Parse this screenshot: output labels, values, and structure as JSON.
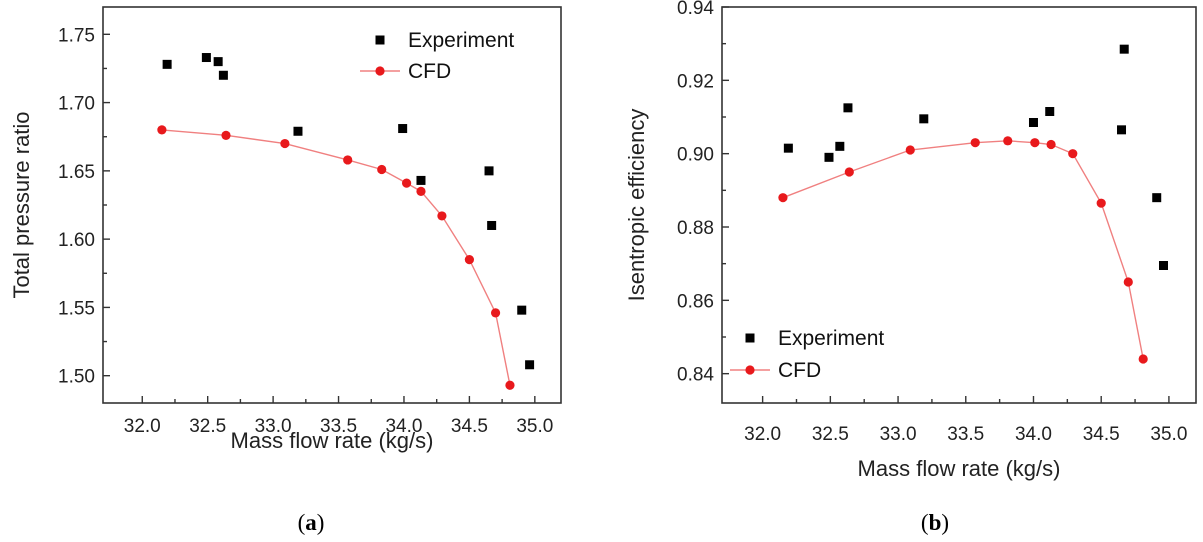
{
  "chart_data": [
    {
      "type": "scatter",
      "panel_label": "a",
      "xlabel": "Mass flow rate (kg/s)",
      "ylabel": "Total pressure ratio",
      "xlim": [
        31.7,
        35.2
      ],
      "ylim": [
        1.48,
        1.77
      ],
      "xticks": [
        "32.0",
        "32.5",
        "33.0",
        "33.5",
        "34.0",
        "34.5",
        "35.0"
      ],
      "yticks": [
        "1.50",
        "1.55",
        "1.60",
        "1.65",
        "1.70",
        "1.75"
      ],
      "legend_position": "top-right",
      "series": [
        {
          "name": "Experiment",
          "marker": "square",
          "color": "#000000",
          "x": [
            32.19,
            32.49,
            32.58,
            32.62,
            33.19,
            33.99,
            34.13,
            34.65,
            34.67,
            34.9,
            34.96
          ],
          "y": [
            1.728,
            1.733,
            1.73,
            1.72,
            1.679,
            1.681,
            1.643,
            1.65,
            1.61,
            1.548,
            1.508
          ]
        },
        {
          "name": "CFD",
          "marker": "circle-line",
          "color": "#e8191c",
          "line_color": "#f08080",
          "x": [
            32.15,
            32.64,
            33.09,
            33.57,
            33.83,
            34.02,
            34.13,
            34.29,
            34.5,
            34.7,
            34.81
          ],
          "y": [
            1.68,
            1.676,
            1.67,
            1.658,
            1.651,
            1.641,
            1.635,
            1.617,
            1.585,
            1.546,
            1.493
          ]
        }
      ]
    },
    {
      "type": "scatter",
      "panel_label": "b",
      "xlabel": "Mass flow rate (kg/s)",
      "ylabel": "Isentropic efficiency",
      "xlim": [
        31.7,
        35.2
      ],
      "ylim": [
        0.832,
        0.94
      ],
      "xticks": [
        "32.0",
        "32.5",
        "33.0",
        "33.5",
        "34.0",
        "34.5",
        "35.0"
      ],
      "yticks": [
        "0.84",
        "0.86",
        "0.88",
        "0.90",
        "0.92",
        "0.94"
      ],
      "legend_position": "bottom-left",
      "series": [
        {
          "name": "Experiment",
          "marker": "square",
          "color": "#000000",
          "x": [
            32.19,
            32.49,
            32.57,
            32.63,
            33.19,
            34.0,
            34.12,
            34.65,
            34.67,
            34.91,
            34.96
          ],
          "y": [
            0.9015,
            0.899,
            0.902,
            0.9125,
            0.9095,
            0.9085,
            0.9115,
            0.9065,
            0.9285,
            0.888,
            0.8695
          ]
        },
        {
          "name": "CFD",
          "marker": "circle-line",
          "color": "#e8191c",
          "line_color": "#f08080",
          "x": [
            32.15,
            32.64,
            33.09,
            33.57,
            33.81,
            34.01,
            34.13,
            34.29,
            34.5,
            34.7,
            34.81
          ],
          "y": [
            0.888,
            0.895,
            0.901,
            0.903,
            0.9035,
            0.903,
            0.9025,
            0.9,
            0.8865,
            0.865,
            0.844
          ]
        }
      ]
    }
  ]
}
